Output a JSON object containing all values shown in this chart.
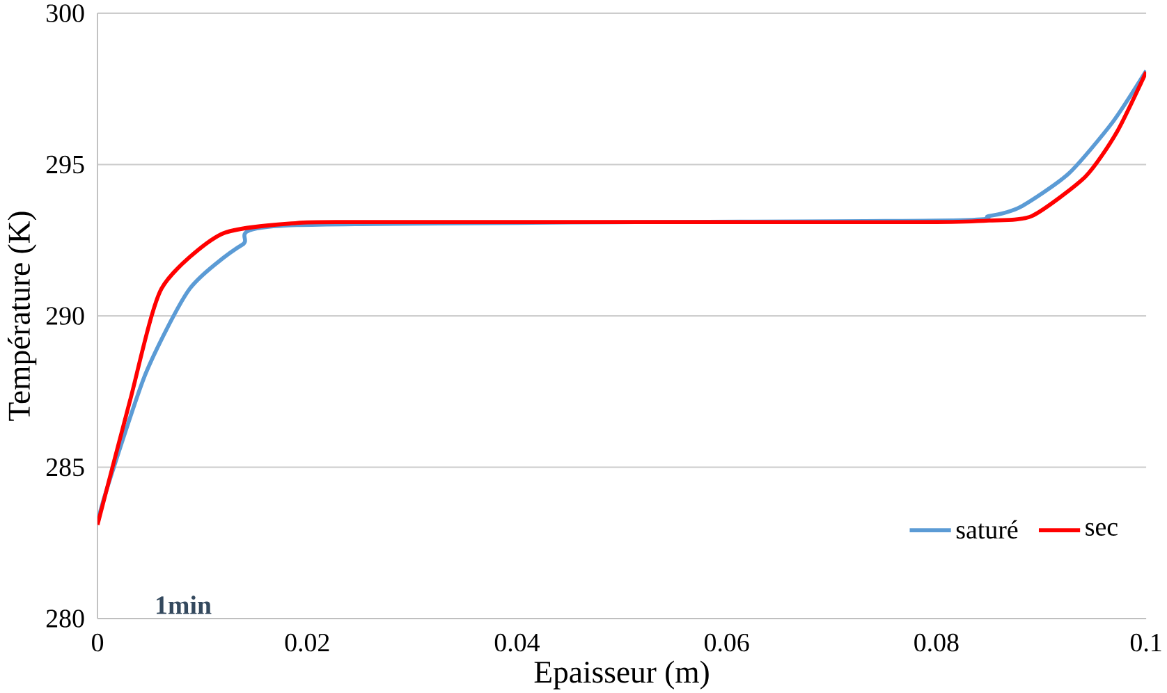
{
  "chart_data": {
    "type": "line",
    "xlabel": "Epaisseur (m)",
    "ylabel": "Température (K)",
    "annotations": [
      "1min"
    ],
    "xlim": [
      0,
      0.1
    ],
    "xticks": [
      0,
      0.02,
      0.04,
      0.06,
      0.08,
      0.1
    ],
    "ylim": [
      280,
      300
    ],
    "yticks": [
      280,
      285,
      290,
      295,
      300
    ],
    "grid": "y",
    "legend": "bottom right",
    "marker": "none",
    "line_style": "solid",
    "series": [
      {
        "name": "saturé",
        "color": "#5b9bd5",
        "x": [
          0,
          0.001,
          0.0046,
          0.0088,
          0.0138,
          0.019,
          0.08,
          0.085,
          0.088,
          0.0926,
          0.0968,
          0.1
        ],
        "values": [
          283.2,
          284.4,
          288.1,
          290.9,
          292.35,
          293.0,
          293.15,
          293.3,
          293.6,
          294.7,
          296.4,
          298.1
        ]
      },
      {
        "name": "sec",
        "color": "#ff0000",
        "x": [
          0,
          0.0031,
          0.0061,
          0.0118,
          0.019,
          0.025,
          0.04,
          0.06,
          0.08,
          0.085,
          0.0891,
          0.0942,
          0.0972,
          0.1
        ],
        "values": [
          283.1,
          287.2,
          290.9,
          292.7,
          293.07,
          293.1,
          293.1,
          293.1,
          293.1,
          293.15,
          293.3,
          294.6,
          296.07,
          298.06
        ]
      }
    ]
  }
}
